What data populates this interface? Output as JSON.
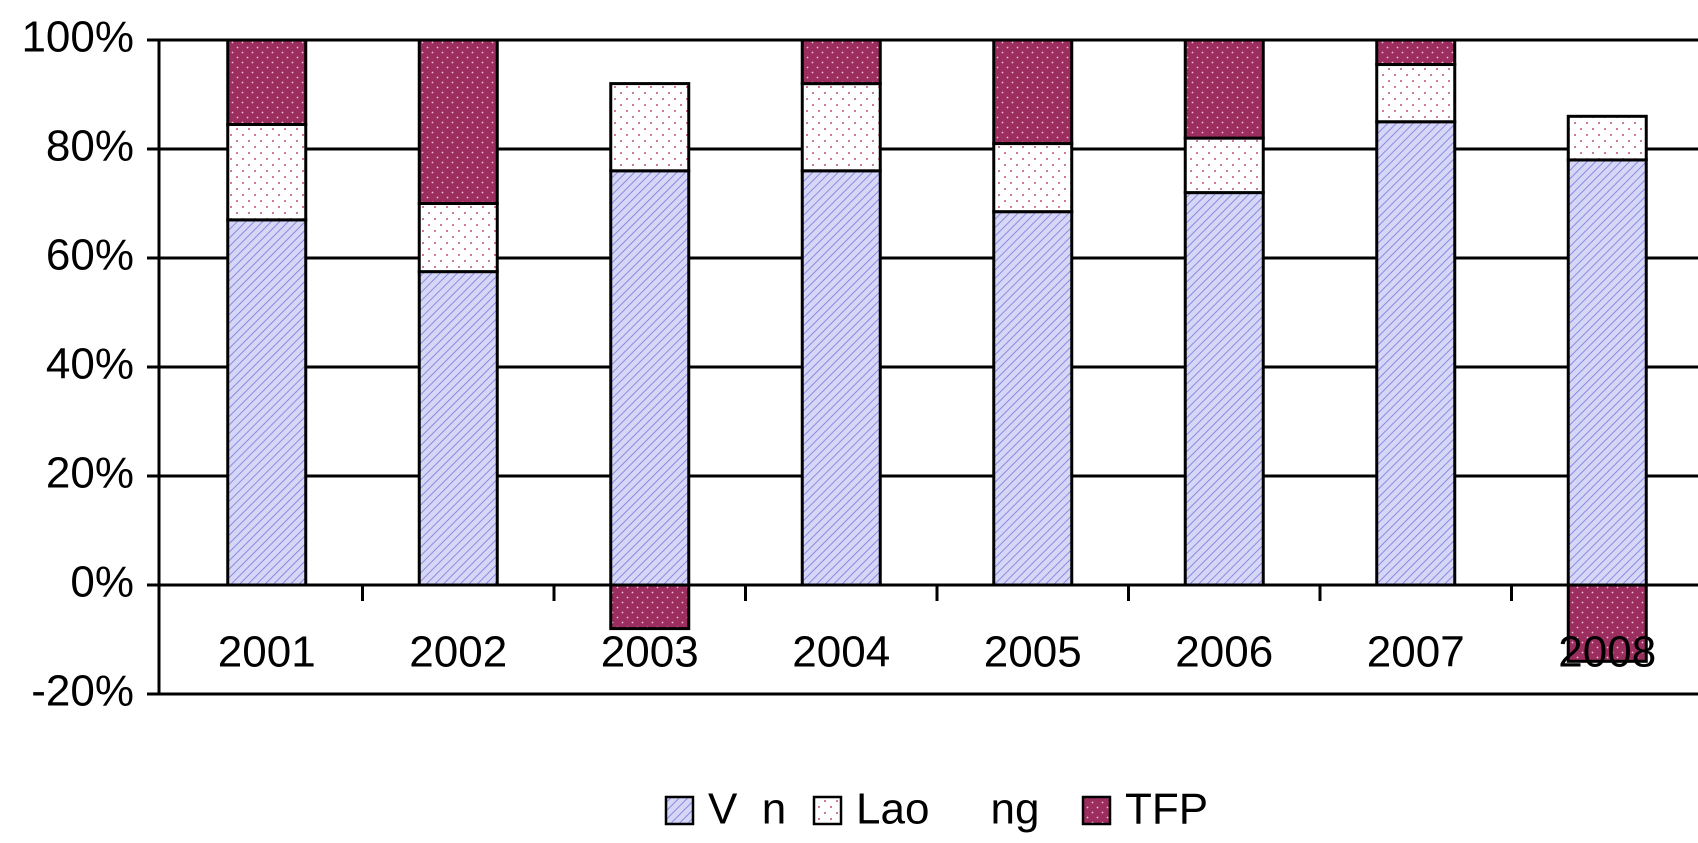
{
  "chart_data": {
    "type": "stacked_bar",
    "categories": [
      "2001",
      "2002",
      "2003",
      "2004",
      "2005",
      "2006",
      "2007",
      "2008"
    ],
    "series": [
      {
        "name": "V  n",
        "color": "#c8c8f2",
        "values": [
          67,
          57.5,
          76,
          76,
          68.5,
          72,
          85,
          78
        ]
      },
      {
        "name": "Lao     ng",
        "color": "#ffffff",
        "values": [
          17.5,
          12.5,
          16,
          16,
          12.5,
          10,
          10.5,
          8
        ]
      },
      {
        "name": "TFP",
        "color": "#9b2d5f",
        "values": [
          15.5,
          30,
          -8,
          8,
          19,
          18,
          4.5,
          -14
        ]
      }
    ],
    "ylim": [
      -20,
      100
    ],
    "yticks": [
      {
        "value": -20,
        "label": "-20%"
      },
      {
        "value": 0,
        "label": "0%"
      },
      {
        "value": 20,
        "label": "20%"
      },
      {
        "value": 40,
        "label": "40%"
      },
      {
        "value": 60,
        "label": "60%"
      },
      {
        "value": 80,
        "label": "80%"
      },
      {
        "value": 100,
        "label": "100%"
      }
    ],
    "grid": true,
    "legend": "bottom"
  }
}
